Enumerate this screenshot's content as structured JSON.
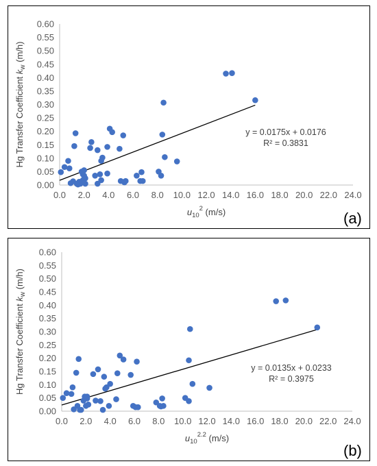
{
  "chart_data": [
    {
      "type": "scatter",
      "panel_label": "(a)",
      "ylabel": "Hg Transfer Coefficient k_w (m/h)",
      "ylabel_parts": {
        "main": "Hg Transfer Coefficient ",
        "var": "k",
        "sub": "w",
        "unit": " (m/h)"
      },
      "xlabel": "u10^2 (m/s)",
      "xlabel_parts": {
        "var": "u",
        "sub": "10",
        "sup": "2",
        "unit": " (m/s)"
      },
      "xlim": [
        0,
        24
      ],
      "ylim": [
        0,
        0.6
      ],
      "x_ticks": [
        "0.0",
        "2.0",
        "4.0",
        "6.0",
        "8.0",
        "10.0",
        "12.0",
        "14.0",
        "16.0",
        "18.0",
        "20.0",
        "22.0",
        "24.0"
      ],
      "y_ticks": [
        "0.00",
        "0.05",
        "0.10",
        "0.15",
        "0.20",
        "0.25",
        "0.30",
        "0.35",
        "0.40",
        "0.45",
        "0.50",
        "0.55",
        "0.60"
      ],
      "grid": false,
      "marker_color": "#4472C4",
      "trendline_color": "#000000",
      "equation_text": "y = 0.0175x + 0.0176",
      "r2_text": "R² = 0.3831",
      "trendline": {
        "slope": 0.0175,
        "intercept": 0.0176,
        "x_start": 0.0,
        "x_end": 16.0
      },
      "x": [
        0.1,
        0.4,
        0.7,
        0.8,
        0.9,
        1.1,
        1.2,
        1.3,
        1.4,
        1.5,
        1.6,
        1.7,
        1.8,
        1.9,
        1.9,
        2.0,
        2.0,
        2.1,
        2.1,
        2.5,
        2.6,
        2.9,
        3.1,
        3.1,
        3.3,
        3.4,
        3.4,
        3.5,
        3.9,
        3.9,
        4.1,
        4.3,
        4.9,
        5.0,
        5.2,
        5.3,
        5.4,
        6.3,
        6.6,
        6.7,
        6.8,
        8.1,
        8.3,
        8.4,
        8.5,
        8.6,
        9.6,
        13.6,
        14.1,
        16.0
      ],
      "y": [
        0.048,
        0.067,
        0.09,
        0.062,
        0.007,
        0.014,
        0.145,
        0.193,
        0.005,
        0.002,
        0.012,
        0.005,
        0.05,
        0.018,
        0.04,
        0.055,
        0.035,
        0.005,
        0.025,
        0.138,
        0.16,
        0.035,
        0.005,
        0.13,
        0.04,
        0.018,
        0.09,
        0.102,
        0.043,
        0.142,
        0.21,
        0.197,
        0.135,
        0.015,
        0.185,
        0.01,
        0.015,
        0.035,
        0.015,
        0.048,
        0.015,
        0.05,
        0.035,
        0.188,
        0.307,
        0.104,
        0.088,
        0.415,
        0.417,
        0.316
      ]
    },
    {
      "type": "scatter",
      "panel_label": "(b)",
      "ylabel": "Hg Transfer Coefficient k_w (m/h)",
      "ylabel_parts": {
        "main": "Hg Transfer Coefficient ",
        "var": "k",
        "sub": "w",
        "unit": " (m/h)"
      },
      "xlabel": "u10^2.2 (m/s)",
      "xlabel_parts": {
        "var": "u",
        "sub": "10",
        "sup": "2.2",
        "unit": " (m/s)"
      },
      "xlim": [
        0,
        24
      ],
      "ylim": [
        0,
        0.6
      ],
      "x_ticks": [
        "0.0",
        "2.0",
        "4.0",
        "6.0",
        "8.0",
        "10.0",
        "12.0",
        "14.0",
        "16.0",
        "18.0",
        "20.0",
        "22.0",
        "24.0"
      ],
      "y_ticks": [
        "0.00",
        "0.05",
        "0.10",
        "0.15",
        "0.20",
        "0.25",
        "0.30",
        "0.35",
        "0.40",
        "0.45",
        "0.50",
        "0.55",
        "0.60"
      ],
      "grid": false,
      "marker_color": "#4472C4",
      "trendline_color": "#000000",
      "equation_text": "y = 0.0135x + 0.0233",
      "r2_text": "R² = 0.3975",
      "trendline": {
        "slope": 0.0135,
        "intercept": 0.0233,
        "x_start": 0.0,
        "x_end": 21.1
      },
      "x": [
        0.1,
        0.4,
        0.8,
        0.9,
        1.0,
        1.2,
        1.3,
        1.4,
        1.5,
        1.6,
        1.8,
        1.9,
        2.0,
        2.1,
        2.1,
        2.2,
        2.6,
        2.8,
        3.0,
        3.2,
        3.4,
        3.5,
        3.6,
        3.7,
        3.9,
        4.0,
        4.5,
        4.6,
        4.8,
        5.1,
        5.7,
        5.9,
        6.1,
        6.2,
        6.3,
        7.8,
        8.1,
        8.2,
        8.3,
        8.4,
        10.2,
        10.5,
        10.5,
        10.6,
        10.8,
        12.2,
        17.7,
        18.5,
        21.1
      ],
      "y": [
        0.05,
        0.068,
        0.065,
        0.09,
        0.007,
        0.145,
        0.02,
        0.197,
        0.005,
        0.005,
        0.04,
        0.055,
        0.02,
        0.048,
        0.055,
        0.025,
        0.14,
        0.04,
        0.158,
        0.038,
        0.005,
        0.13,
        0.085,
        0.09,
        0.02,
        0.103,
        0.045,
        0.143,
        0.21,
        0.195,
        0.137,
        0.02,
        0.015,
        0.187,
        0.015,
        0.033,
        0.02,
        0.018,
        0.048,
        0.02,
        0.05,
        0.038,
        0.192,
        0.31,
        0.103,
        0.088,
        0.415,
        0.418,
        0.316
      ]
    }
  ]
}
